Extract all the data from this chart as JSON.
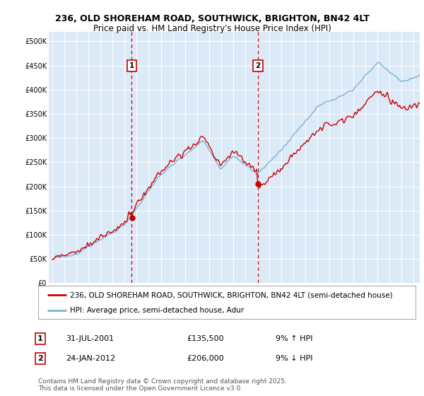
{
  "title": "236, OLD SHOREHAM ROAD, SOUTHWICK, BRIGHTON, BN42 4LT",
  "subtitle": "Price paid vs. HM Land Registry's House Price Index (HPI)",
  "ylabel_ticks": [
    "£0",
    "£50K",
    "£100K",
    "£150K",
    "£200K",
    "£250K",
    "£300K",
    "£350K",
    "£400K",
    "£450K",
    "£500K"
  ],
  "ytick_values": [
    0,
    50000,
    100000,
    150000,
    200000,
    250000,
    300000,
    350000,
    400000,
    450000,
    500000
  ],
  "ylim": [
    0,
    520000
  ],
  "xlim_start": 1994.7,
  "xlim_end": 2025.5,
  "background_color": "#dce9f7",
  "grid_color": "#ffffff",
  "line1_color": "#cc0000",
  "line2_color": "#7ab3d4",
  "marker1_x": 2001.58,
  "marker2_x": 2012.07,
  "marker1_y": 135500,
  "marker2_y": 206000,
  "legend_line1": "236, OLD SHOREHAM ROAD, SOUTHWICK, BRIGHTON, BN42 4LT (semi-detached house)",
  "legend_line2": "HPI: Average price, semi-detached house, Adur",
  "note1_label": "1",
  "note1_date": "31-JUL-2001",
  "note1_price": "£135,500",
  "note1_hpi": "9% ↑ HPI",
  "note2_label": "2",
  "note2_date": "24-JAN-2012",
  "note2_price": "£206,000",
  "note2_hpi": "9% ↓ HPI",
  "footer": "Contains HM Land Registry data © Crown copyright and database right 2025.\nThis data is licensed under the Open Government Licence v3.0.",
  "title_fontsize": 9,
  "subtitle_fontsize": 8.5,
  "tick_fontsize": 7,
  "legend_fontsize": 7.5,
  "note_fontsize": 8,
  "footer_fontsize": 6.5
}
